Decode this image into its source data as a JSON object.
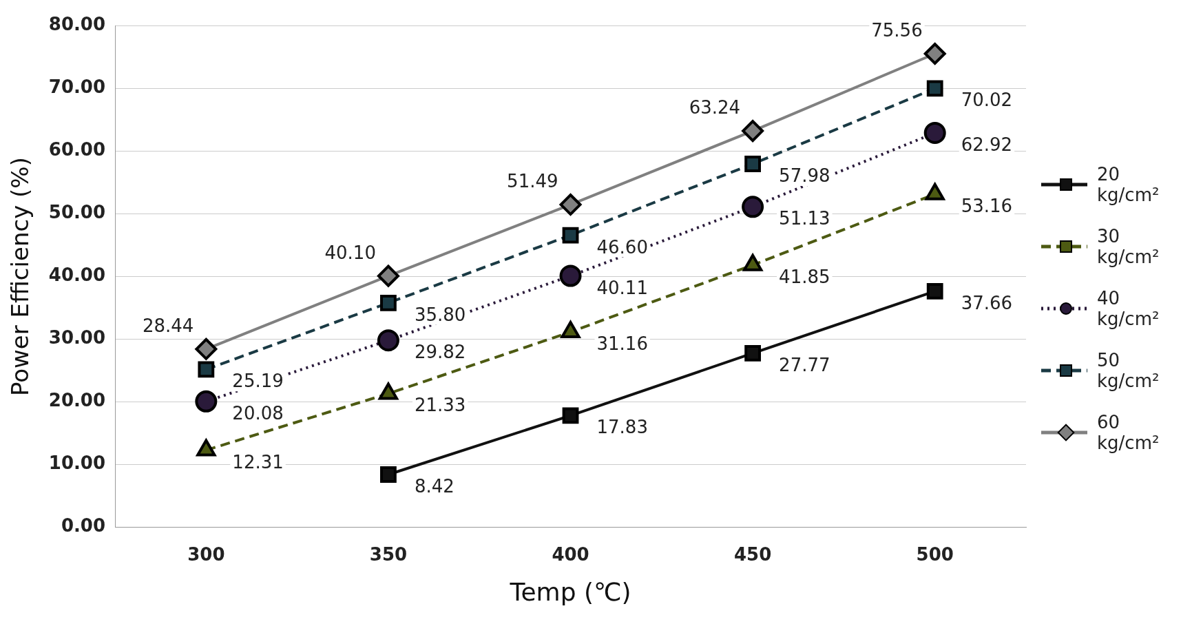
{
  "chart_data": {
    "type": "line",
    "xlabel": "Temp (℃)",
    "ylabel": "Power Efficiency (%)",
    "categories": [
      "300",
      "350",
      "400",
      "450",
      "500"
    ],
    "series": [
      {
        "name": "20 kg/cm²",
        "color": "#111111",
        "marker": "square",
        "line_style": "solid",
        "values": [
          null,
          8.42,
          17.83,
          27.77,
          37.66
        ],
        "value_labels": [
          null,
          "8.42",
          "17.83",
          "27.77",
          "37.66"
        ]
      },
      {
        "name": "30 kg/cm²",
        "color": "#4d5a12",
        "marker": "triangle",
        "line_style": "dashed",
        "values": [
          12.31,
          21.33,
          31.16,
          41.85,
          53.16
        ],
        "value_labels": [
          "12.31",
          "21.33",
          "31.16",
          "41.85",
          "53.16"
        ]
      },
      {
        "name": "40 kg/cm²",
        "color": "#2a1a3a",
        "marker": "circle",
        "line_style": "dotted",
        "values": [
          20.08,
          29.82,
          40.11,
          51.13,
          62.92
        ],
        "value_labels": [
          "20.08",
          "29.82",
          "40.11",
          "51.13",
          "62.92"
        ]
      },
      {
        "name": "50 kg/cm²",
        "color": "#1a3a44",
        "marker": "square",
        "line_style": "dashed",
        "values": [
          25.19,
          35.8,
          46.6,
          57.98,
          70.02
        ],
        "value_labels": [
          "25.19",
          "35.80",
          "46.60",
          "57.98",
          "70.02"
        ]
      },
      {
        "name": "60 kg/cm²",
        "color": "#808080",
        "marker": "diamond",
        "line_style": "solid",
        "values": [
          28.44,
          40.1,
          51.49,
          63.24,
          75.56
        ],
        "value_labels": [
          "28.44",
          "40.10",
          "51.49",
          "63.24",
          "75.56"
        ]
      }
    ],
    "ylim": [
      0,
      80
    ],
    "yticks": [
      {
        "value": 0,
        "label": "0.00"
      },
      {
        "value": 10,
        "label": "10.00"
      },
      {
        "value": 20,
        "label": "20.00"
      },
      {
        "value": 30,
        "label": "30.00"
      },
      {
        "value": 40,
        "label": "40.00"
      },
      {
        "value": 50,
        "label": "50.00"
      },
      {
        "value": 60,
        "label": "60.00"
      },
      {
        "value": 70,
        "label": "70.00"
      },
      {
        "value": 80,
        "label": "80.00"
      }
    ],
    "grid": "y",
    "legend": "right"
  }
}
